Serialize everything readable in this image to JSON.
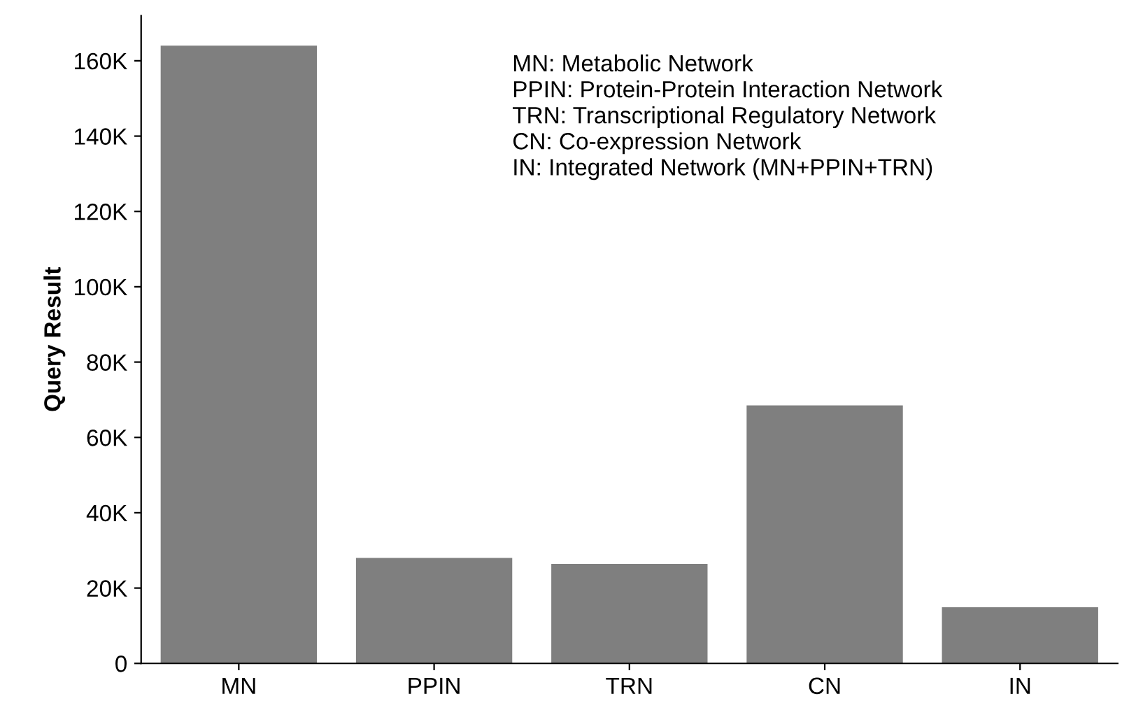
{
  "chart_data": {
    "type": "bar",
    "ylabel": "Query Result",
    "categories": [
      "MN",
      "PPIN",
      "TRN",
      "CN",
      "IN"
    ],
    "values": [
      164000,
      28000,
      26400,
      68500,
      14900
    ],
    "color": "#7f7f7f",
    "ylim": [
      0,
      172000
    ],
    "yticks": [
      {
        "value": 0,
        "label": "0"
      },
      {
        "value": 20000,
        "label": "20K"
      },
      {
        "value": 40000,
        "label": "40K"
      },
      {
        "value": 60000,
        "label": "60K"
      },
      {
        "value": 80000,
        "label": "80K"
      },
      {
        "value": 100000,
        "label": "100K"
      },
      {
        "value": 120000,
        "label": "120K"
      },
      {
        "value": 140000,
        "label": "140K"
      },
      {
        "value": 160000,
        "label": "160K"
      }
    ],
    "annotations": [
      "MN: Metabolic Network\nPPIN: Protein-Protein Interaction Network\nTRN: Transcriptional Regulatory Network\nCN: Co-expression Network\nIN: Integrated Network (MN+PPIN+TRN)"
    ],
    "grid": false,
    "legend": false
  }
}
